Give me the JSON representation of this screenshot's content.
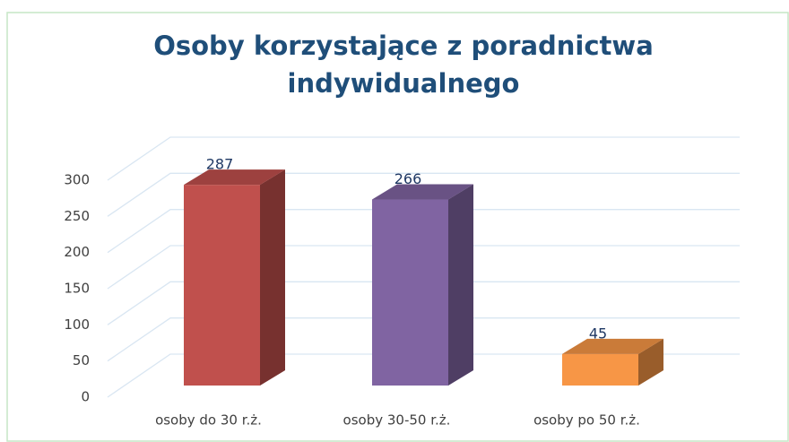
{
  "chart_data": {
    "type": "bar3d",
    "title": "Osoby korzystające z poradnictwa indywidualnego",
    "categories": [
      "osoby do 30 r.ż.",
      "osoby 30-50 r.ż.",
      "osoby po 50 r.ż."
    ],
    "values": [
      287,
      266,
      45
    ],
    "colors": [
      "#c0504d",
      "#8064a2",
      "#f79646"
    ],
    "ylim": [
      0,
      300
    ],
    "yticks": [
      0,
      50,
      100,
      150,
      200,
      250,
      300
    ],
    "grid": true
  }
}
